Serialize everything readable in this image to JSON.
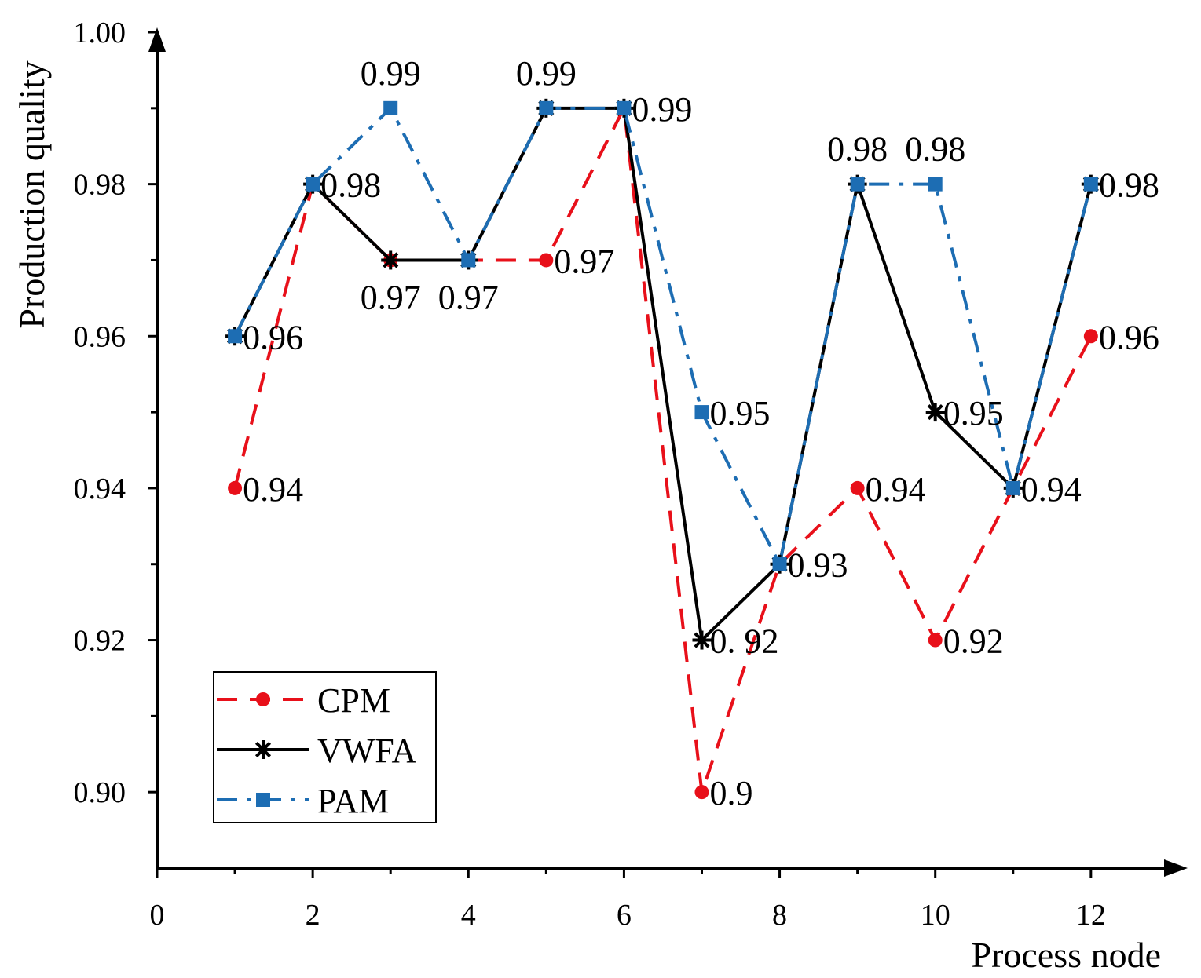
{
  "chart_data": {
    "type": "line",
    "xlabel": "Process node",
    "ylabel": "Production quality",
    "xlim": [
      0,
      12.9
    ],
    "ylim": [
      0.89,
      1.0
    ],
    "x_ticks": [
      0,
      2,
      4,
      6,
      8,
      10,
      12
    ],
    "x_tick_labels": [
      "0",
      "2",
      "4",
      "6",
      "8",
      "10",
      "12"
    ],
    "y_ticks": [
      0.9,
      0.92,
      0.94,
      0.96,
      0.98,
      1.0
    ],
    "y_tick_labels": [
      "0.90",
      "0.92",
      "0.94",
      "0.96",
      "0.98",
      "1.00"
    ],
    "x": [
      1,
      2,
      3,
      4,
      5,
      6,
      7,
      8,
      9,
      10,
      11,
      12
    ],
    "legend_position": "bottom-left",
    "series": [
      {
        "name": "CPM",
        "color": "#e8101a",
        "line_style": "dashed",
        "marker": "circle",
        "values": [
          0.94,
          0.98,
          0.97,
          0.97,
          0.97,
          0.99,
          0.9,
          0.93,
          0.94,
          0.92,
          0.94,
          0.96
        ]
      },
      {
        "name": "VWFA",
        "color": "#000000",
        "line_style": "solid",
        "marker": "asterisk",
        "values": [
          0.96,
          0.98,
          0.97,
          0.97,
          0.99,
          0.99,
          0.92,
          0.93,
          0.98,
          0.95,
          0.94,
          0.98
        ]
      },
      {
        "name": "PAM",
        "color": "#1d6db3",
        "line_style": "dashdot",
        "marker": "square",
        "values": [
          0.96,
          0.98,
          0.99,
          0.97,
          0.99,
          0.99,
          0.95,
          0.93,
          0.98,
          0.98,
          0.94,
          0.98
        ]
      }
    ],
    "annotations": [
      {
        "x": 1,
        "y": 0.94,
        "text": "0.94",
        "pos": "right"
      },
      {
        "x": 1,
        "y": 0.96,
        "text": "0.96",
        "pos": "right"
      },
      {
        "x": 2,
        "y": 0.98,
        "text": "0.98",
        "pos": "right"
      },
      {
        "x": 3,
        "y": 0.99,
        "text": "0.99",
        "pos": "above"
      },
      {
        "x": 3,
        "y": 0.97,
        "text": "0.97",
        "pos": "below"
      },
      {
        "x": 4,
        "y": 0.97,
        "text": "0.97",
        "pos": "below"
      },
      {
        "x": 5,
        "y": 0.97,
        "text": "0.97",
        "pos": "right"
      },
      {
        "x": 5,
        "y": 0.99,
        "text": "0.99",
        "pos": "above"
      },
      {
        "x": 6,
        "y": 0.99,
        "text": "0.99",
        "pos": "right"
      },
      {
        "x": 7,
        "y": 0.95,
        "text": "0.95",
        "pos": "right"
      },
      {
        "x": 7,
        "y": 0.92,
        "text": "0. 92",
        "pos": "right"
      },
      {
        "x": 7,
        "y": 0.9,
        "text": "0.9",
        "pos": "right"
      },
      {
        "x": 8,
        "y": 0.93,
        "text": "0.93",
        "pos": "right"
      },
      {
        "x": 9,
        "y": 0.98,
        "text": "0.98",
        "pos": "above"
      },
      {
        "x": 9,
        "y": 0.94,
        "text": "0.94",
        "pos": "right"
      },
      {
        "x": 10,
        "y": 0.98,
        "text": "0.98",
        "pos": "above"
      },
      {
        "x": 10,
        "y": 0.95,
        "text": "0.95",
        "pos": "right"
      },
      {
        "x": 10,
        "y": 0.92,
        "text": "0.92",
        "pos": "right"
      },
      {
        "x": 11,
        "y": 0.94,
        "text": "0.94",
        "pos": "right"
      },
      {
        "x": 12,
        "y": 0.98,
        "text": "0.98",
        "pos": "right"
      },
      {
        "x": 12,
        "y": 0.96,
        "text": "0.96",
        "pos": "right"
      }
    ]
  }
}
